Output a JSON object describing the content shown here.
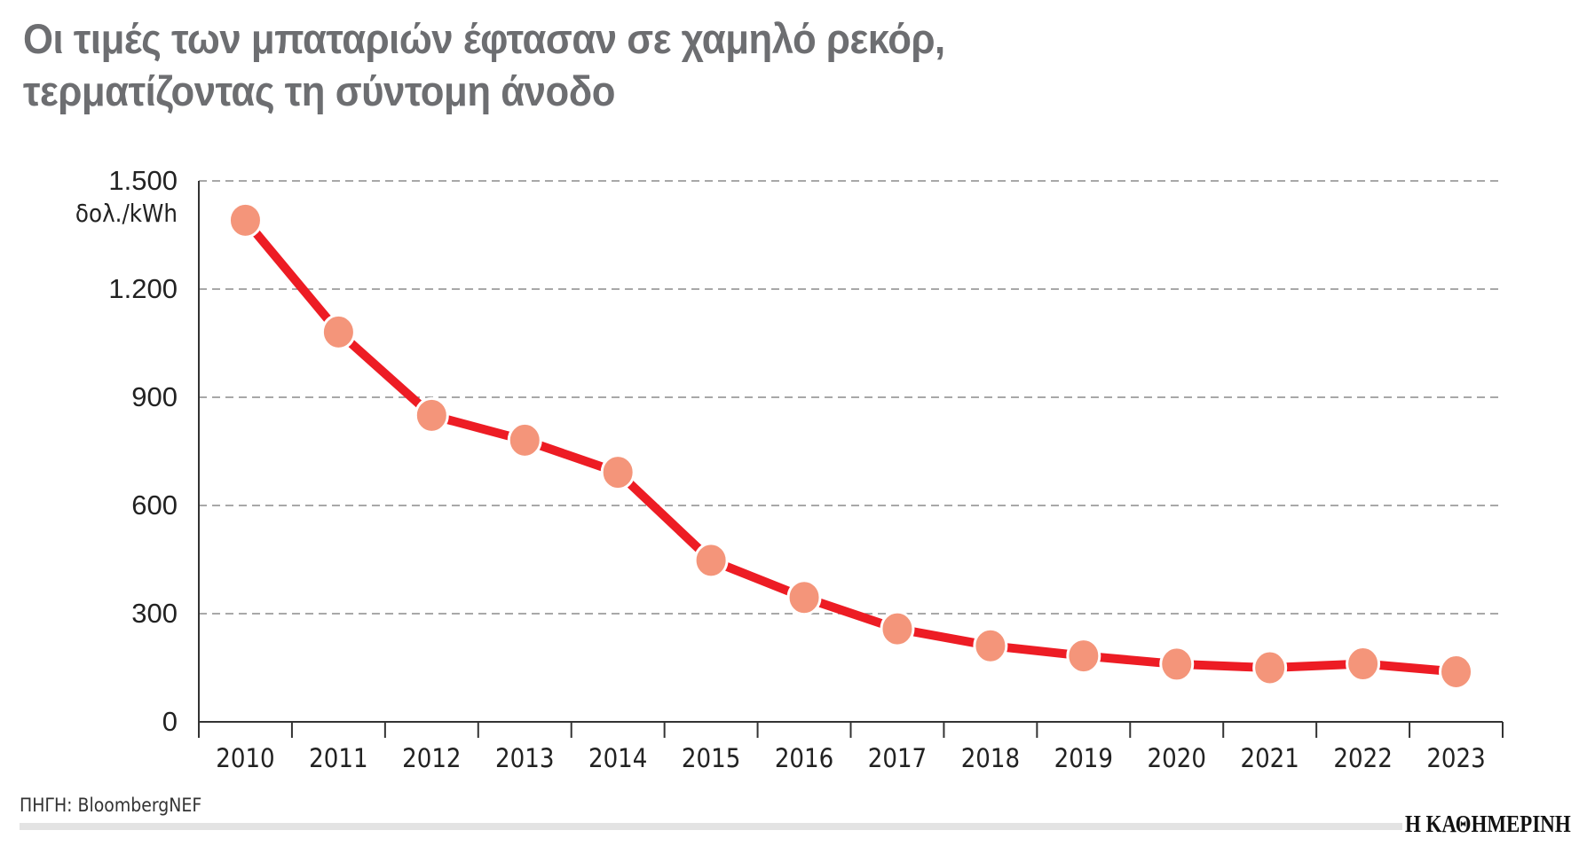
{
  "title_lines": [
    "Οι τιμές των μπαταριών έφτασαν σε χαμηλό ρεκόρ,",
    "τερματίζοντας τη σύντομη άνοδο"
  ],
  "source": "ΠΗΓΗ: BloombergNEF",
  "logo": "Η ΚΑΘΗΜΕΡΙΝΗ",
  "chart_data": {
    "type": "line",
    "title": "Οι τιμές των μπαταριών έφτασαν σε χαμηλό ρεκόρ, τερματίζοντας τη σύντομη άνοδο",
    "ylabel": "δολ./kWh",
    "xlabel": "",
    "categories": [
      "2010",
      "2011",
      "2012",
      "2013",
      "2014",
      "2015",
      "2016",
      "2017",
      "2018",
      "2019",
      "2020",
      "2021",
      "2022",
      "2023"
    ],
    "values": [
      1391,
      1081,
      850,
      781,
      692,
      448,
      345,
      258,
      211,
      183,
      160,
      150,
      161,
      139
    ],
    "ylim": [
      0,
      1500
    ],
    "yticks": [
      0,
      300,
      600,
      900,
      1200,
      1500
    ],
    "ytick_labels": [
      "0",
      "300",
      "600",
      "900",
      "1.200",
      "1.500"
    ],
    "grid": "horizontal dashed",
    "colors": {
      "line": "#ed1c24",
      "marker": "#f4957a",
      "grid": "#8c8c8c",
      "title": "#6d6e71"
    }
  }
}
